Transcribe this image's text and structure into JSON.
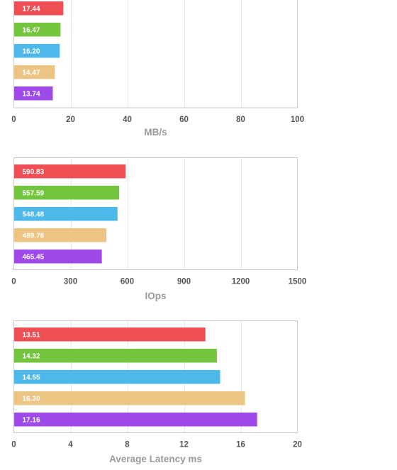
{
  "colors": {
    "red": "#ee4f55",
    "green": "#74c43d",
    "blue": "#4db9ea",
    "tan": "#ecc483",
    "purple": "#9d4ae8",
    "grid": "#e8e8e8",
    "frame": "#c9c9c9",
    "tick_text": "#555555",
    "axis_label_text": "#9a9a9a"
  },
  "chart_data": [
    {
      "type": "bar",
      "orientation": "horizontal",
      "xlabel": "MB/s",
      "xlim": [
        0,
        100
      ],
      "ticks": [
        0,
        20,
        40,
        60,
        80,
        100
      ],
      "grid": true,
      "series": [
        {
          "value": 17.44,
          "label": "17.44",
          "color": "#ee4f55"
        },
        {
          "value": 16.47,
          "label": "16.47",
          "color": "#74c43d"
        },
        {
          "value": 16.2,
          "label": "16.20",
          "color": "#4db9ea"
        },
        {
          "value": 14.47,
          "label": "14.47",
          "color": "#ecc483"
        },
        {
          "value": 13.74,
          "label": "13.74",
          "color": "#9d4ae8"
        }
      ]
    },
    {
      "type": "bar",
      "orientation": "horizontal",
      "xlabel": "IOps",
      "xlim": [
        0,
        1500
      ],
      "ticks": [
        0,
        300,
        600,
        900,
        1200,
        1500
      ],
      "grid": true,
      "series": [
        {
          "value": 590.83,
          "label": "590.83",
          "color": "#ee4f55"
        },
        {
          "value": 557.59,
          "label": "557.59",
          "color": "#74c43d"
        },
        {
          "value": 548.48,
          "label": "548.48",
          "color": "#4db9ea"
        },
        {
          "value": 489.78,
          "label": "489.78",
          "color": "#ecc483"
        },
        {
          "value": 465.45,
          "label": "465.45",
          "color": "#9d4ae8"
        }
      ]
    },
    {
      "type": "bar",
      "orientation": "horizontal",
      "xlabel": "Average Latency ms",
      "xlim": [
        0,
        20
      ],
      "ticks": [
        0,
        4,
        8,
        12,
        16,
        20
      ],
      "grid": true,
      "series": [
        {
          "value": 13.51,
          "label": "13.51",
          "color": "#ee4f55"
        },
        {
          "value": 14.32,
          "label": "14.32",
          "color": "#74c43d"
        },
        {
          "value": 14.55,
          "label": "14.55",
          "color": "#4db9ea"
        },
        {
          "value": 16.3,
          "label": "16.30",
          "color": "#ecc483"
        },
        {
          "value": 17.16,
          "label": "17.16",
          "color": "#9d4ae8"
        }
      ]
    }
  ]
}
